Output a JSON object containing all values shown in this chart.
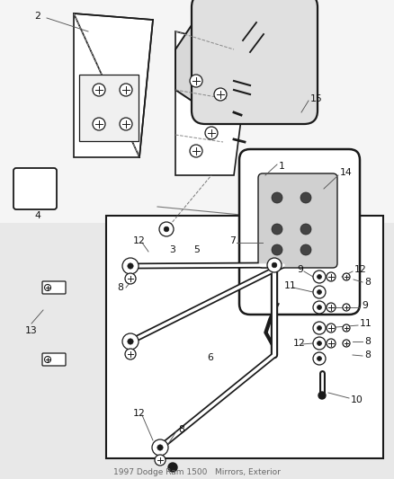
{
  "bg_color": "#e8e8e8",
  "box_bg": "#ffffff",
  "lc": "#1a1a1a",
  "gray": "#888888",
  "footer_text": "1997 Dodge Ram 1500   Mirrors, Exterior",
  "footer_fontsize": 6.5
}
